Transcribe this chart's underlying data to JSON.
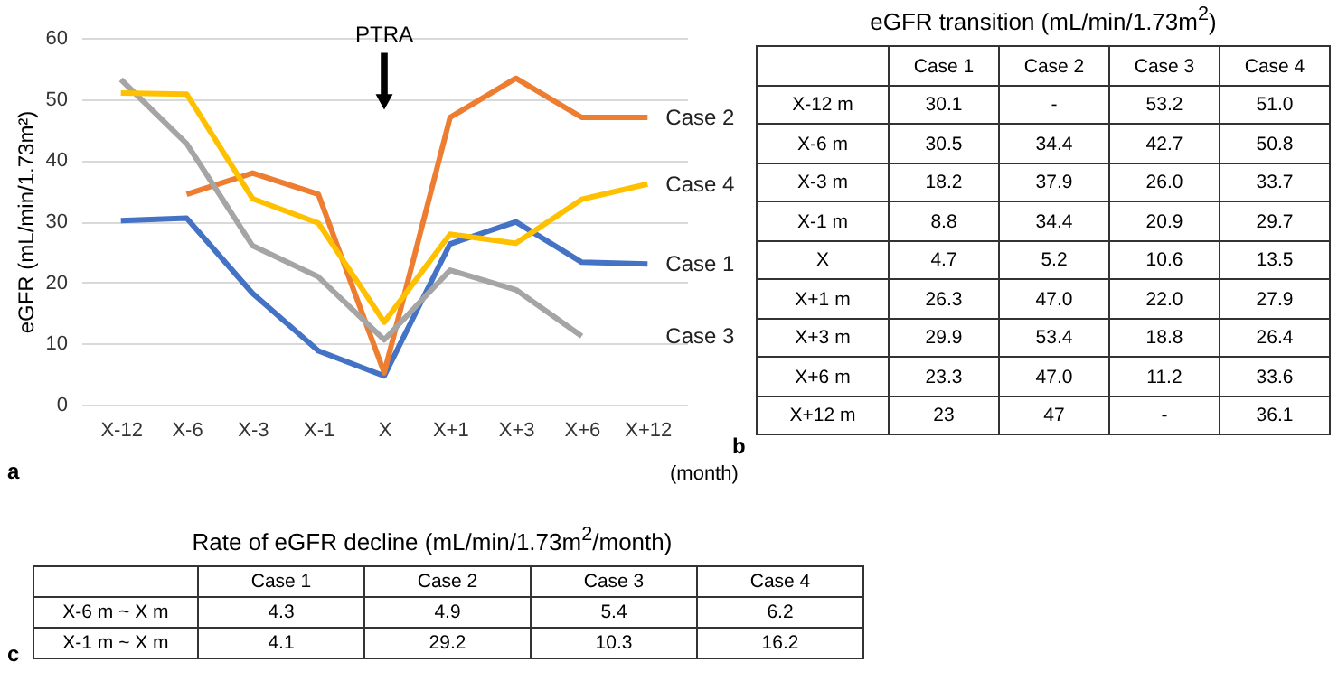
{
  "chart_data": [
    {
      "type": "line",
      "ylabel": "eGFR (mL/min/1.73m²)",
      "xlabel": "(month)",
      "categories": [
        "X-12",
        "X-6",
        "X-3",
        "X-1",
        "X",
        "X+1",
        "X+3",
        "X+6",
        "X+12"
      ],
      "ylim": [
        0,
        60
      ],
      "yticks": [
        0,
        10,
        20,
        30,
        40,
        50,
        60
      ],
      "grid": "y",
      "legend": false,
      "marker": "none",
      "line_style": "solid",
      "series": [
        {
          "name": "Case 1",
          "color": "#4472c4",
          "values": [
            30.1,
            30.5,
            18.2,
            8.8,
            4.7,
            26.3,
            29.9,
            23.3,
            23
          ]
        },
        {
          "name": "Case 2",
          "color": "#ed7d31",
          "values": [
            null,
            34.4,
            37.9,
            34.4,
            5.2,
            47.0,
            53.4,
            47.0,
            47
          ]
        },
        {
          "name": "Case 3",
          "color": "#a5a5a5",
          "values": [
            53.2,
            42.7,
            26.0,
            20.9,
            10.6,
            22.0,
            18.8,
            11.2,
            null
          ]
        },
        {
          "name": "Case 4",
          "color": "#ffc000",
          "values": [
            51.0,
            50.8,
            33.7,
            29.7,
            13.5,
            27.9,
            26.4,
            33.6,
            36.1
          ]
        }
      ],
      "annotations": [
        "PTRA",
        "a"
      ]
    },
    {
      "type": "other",
      "title": "eGFR transition (mL/min/1.73m$^{2}$)",
      "categories": [
        "Case 1",
        "Case 2",
        "Case 3",
        "Case 4"
      ],
      "y_categories": [
        "X-12 m",
        "X-6 m",
        "X-3 m",
        "X-1 m",
        "X",
        "X+1 m",
        "X+3 m",
        "X+6 m",
        "X+12 m"
      ],
      "cell_labels": [
        [
          "30.1",
          "-",
          "53.2",
          "51.0"
        ],
        [
          "30.5",
          "34.4",
          "42.7",
          "50.8"
        ],
        [
          "18.2",
          "37.9",
          "26.0",
          "33.7"
        ],
        [
          "8.8",
          "34.4",
          "20.9",
          "29.7"
        ],
        [
          "4.7",
          "5.2",
          "10.6",
          "13.5"
        ],
        [
          "26.3",
          "47.0",
          "22.0",
          "27.9"
        ],
        [
          "29.9",
          "53.4",
          "18.8",
          "26.4"
        ],
        [
          "23.3",
          "47.0",
          "11.2",
          "33.6"
        ],
        [
          "23",
          "47",
          "-",
          "36.1"
        ]
      ],
      "annotations": [
        "b"
      ]
    },
    {
      "type": "other",
      "title": "Rate of eGFR decline (mL/min/1.73m$^{2}$/month)",
      "categories": [
        "Case 1",
        "Case 2",
        "Case 3",
        "Case 4"
      ],
      "y_categories": [
        "X-6 m ~ X m",
        "X-1 m ~ X m"
      ],
      "cell_labels": [
        [
          "4.3",
          "4.9",
          "5.4",
          "6.2"
        ],
        [
          "4.1",
          "29.2",
          "10.3",
          "16.2"
        ]
      ],
      "annotations": [
        "c"
      ]
    }
  ]
}
